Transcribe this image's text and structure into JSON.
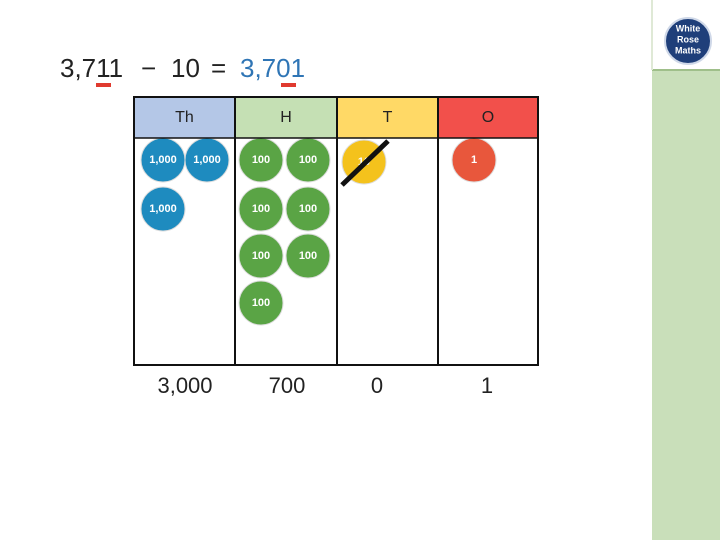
{
  "equation": {
    "left": "3,711",
    "minus": "−",
    "subtrahend": "10",
    "equals": "=",
    "result": "3,701"
  },
  "logo": {
    "lines": [
      "White",
      "Rose",
      "Maths"
    ]
  },
  "place_value_chart": {
    "columns": [
      {
        "header": "Th",
        "counters": [
          "1,000",
          "1,000",
          "1,000"
        ],
        "total": "3,000"
      },
      {
        "header": "H",
        "counters": [
          "100",
          "100",
          "100",
          "100",
          "100",
          "100",
          "100"
        ],
        "total": "700"
      },
      {
        "header": "T",
        "counters": [
          "10"
        ],
        "total": "0"
      },
      {
        "header": "O",
        "counters": [
          "1"
        ],
        "total": "1"
      }
    ]
  }
}
